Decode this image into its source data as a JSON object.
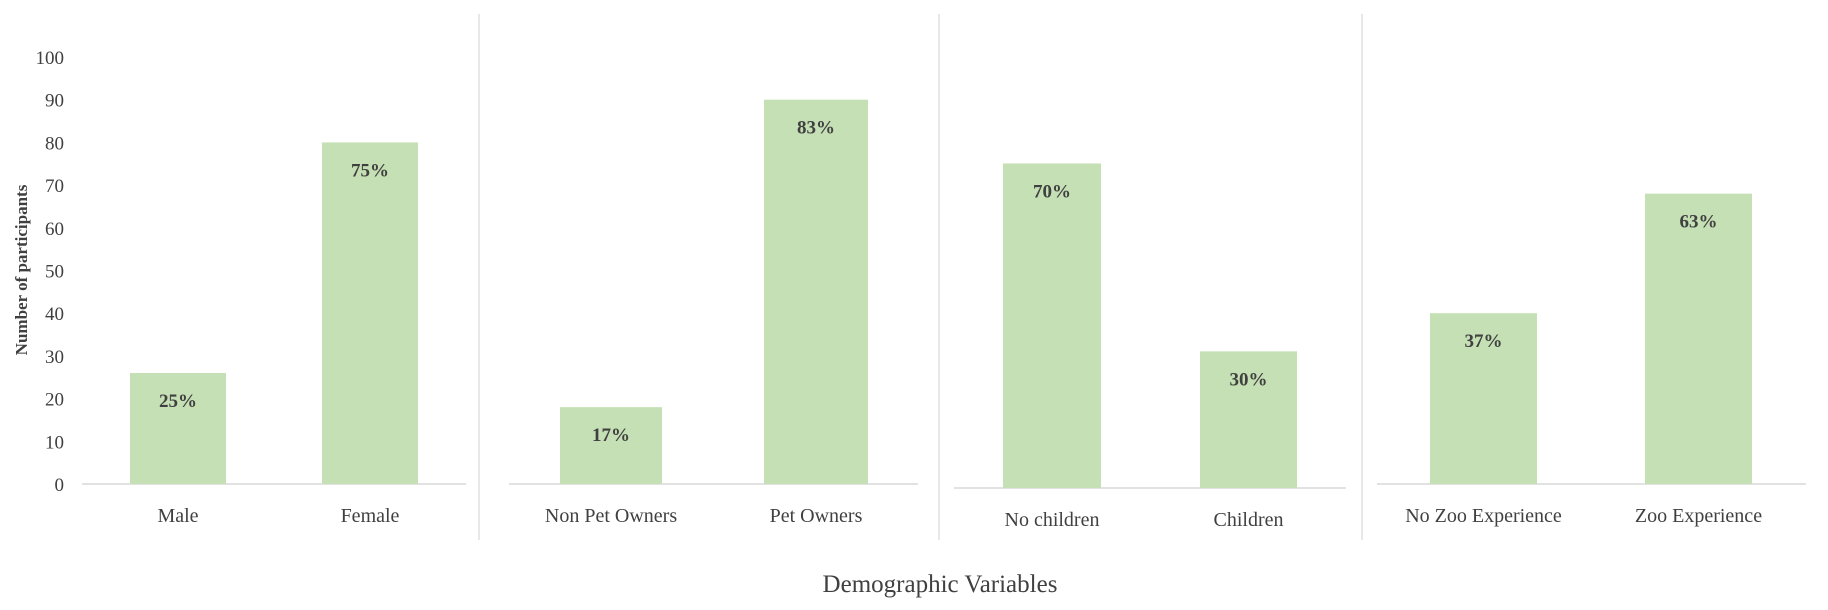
{
  "chart_data": {
    "type": "bar",
    "xlabel": "Demographic Variables",
    "ylabel": "Number of participants",
    "ylim": [
      0,
      100
    ],
    "yticks": [
      "0",
      "10",
      "20",
      "30",
      "40",
      "50",
      "60",
      "70",
      "80",
      "90",
      "100"
    ],
    "grid": false,
    "bar_color": "#c5e0b4",
    "groups": [
      {
        "bars": [
          {
            "category": "Male",
            "value": 26,
            "label": "25%"
          },
          {
            "category": "Female",
            "value": 80,
            "label": "75%"
          }
        ]
      },
      {
        "bars": [
          {
            "category": "Non Pet Owners",
            "value": 18,
            "label": "17%"
          },
          {
            "category": "Pet Owners",
            "value": 90,
            "label": "83%"
          }
        ]
      },
      {
        "bars": [
          {
            "category": "No children",
            "value": 76,
            "label": "70%"
          },
          {
            "category": "Children",
            "value": 32,
            "label": "30%"
          }
        ]
      },
      {
        "bars": [
          {
            "category": "No Zoo Experience",
            "value": 40,
            "label": "37%"
          },
          {
            "category": "Zoo Experience",
            "value": 68,
            "label": "63%"
          }
        ]
      }
    ]
  }
}
